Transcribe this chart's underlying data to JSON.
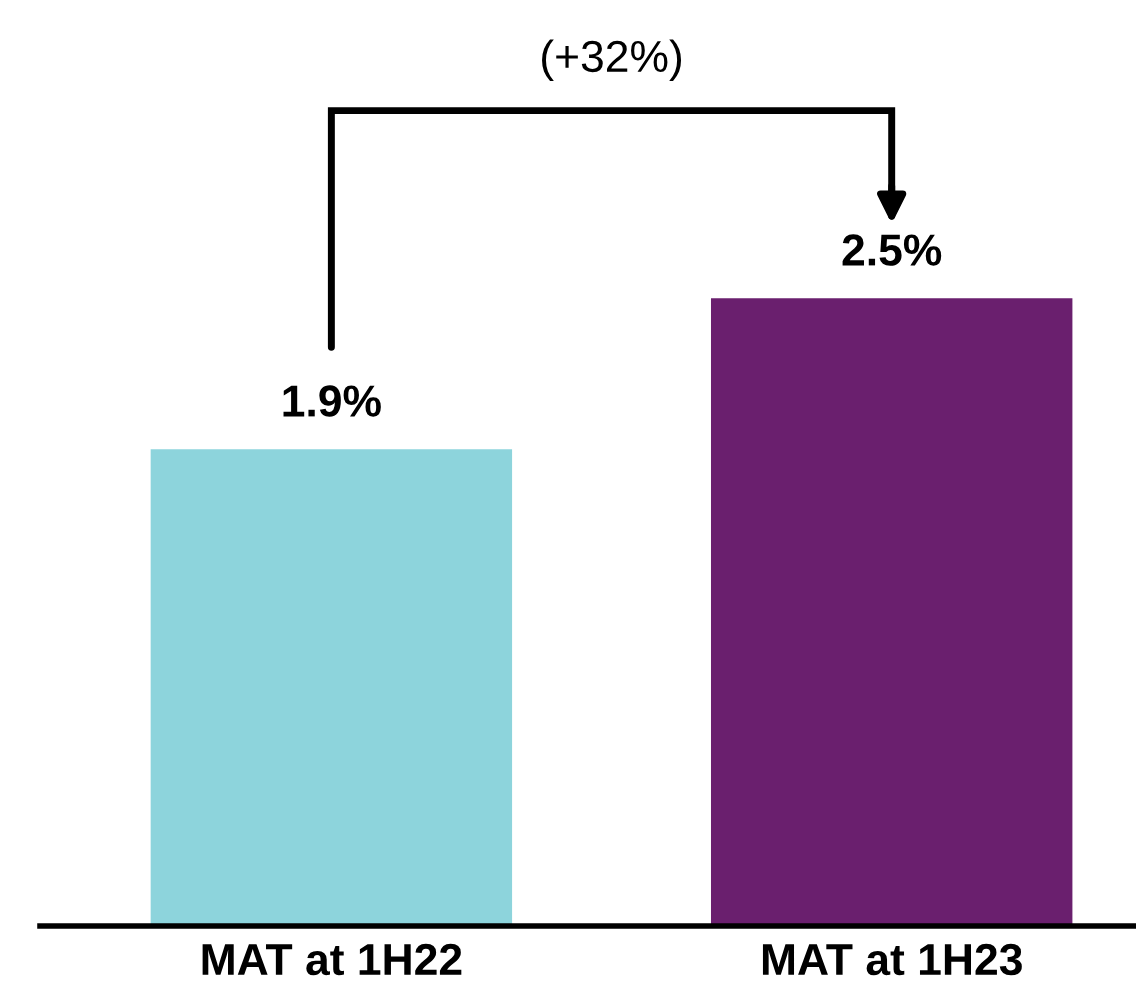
{
  "chart_data": {
    "type": "bar",
    "categories": [
      "MAT at 1H22",
      "MAT at 1H23"
    ],
    "values": [
      1.9,
      2.5
    ],
    "value_labels": [
      "1.9%",
      "2.5%"
    ],
    "colors": [
      "#8dd4dc",
      "#6a1f6e"
    ],
    "annotations": [
      "(+32%)"
    ],
    "grid": false,
    "legend": false
  }
}
